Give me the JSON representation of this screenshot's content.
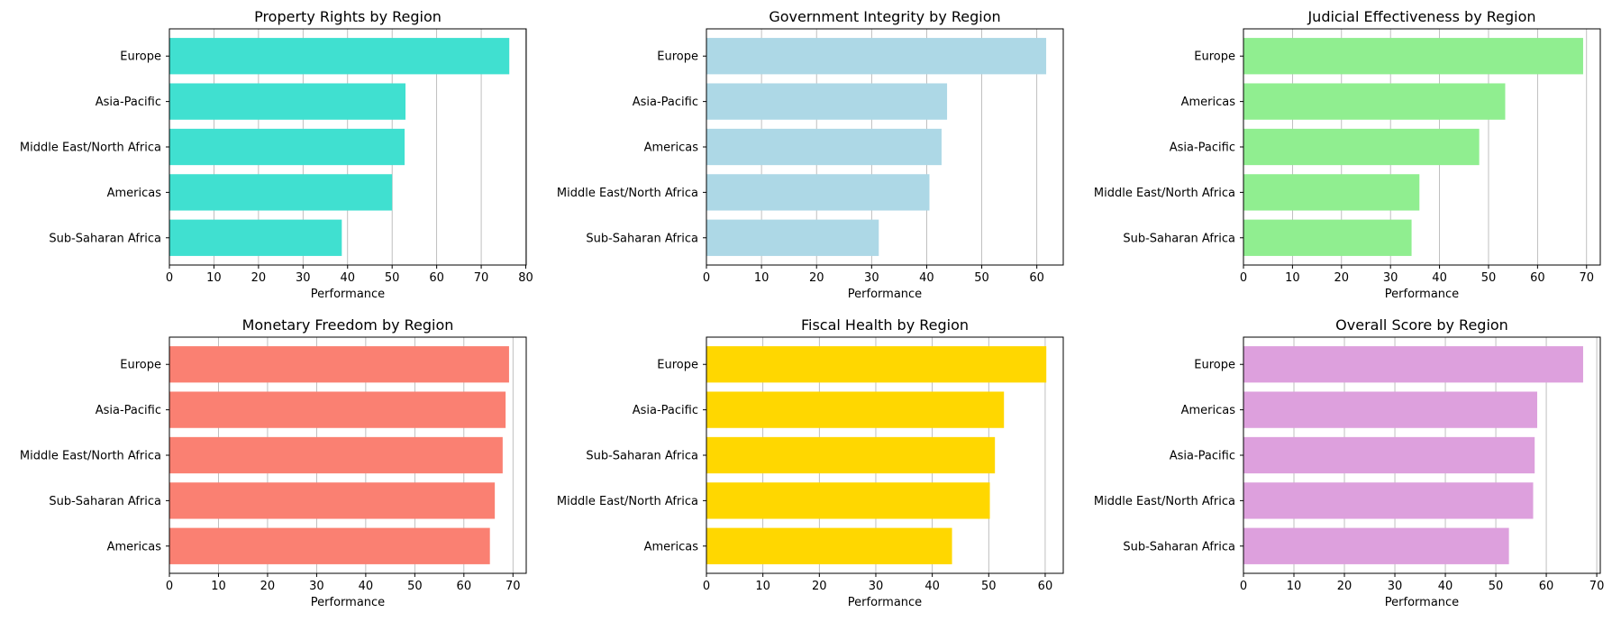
{
  "chart_data": [
    {
      "type": "bar",
      "orientation": "horizontal",
      "title": "Property Rights by Region",
      "xlabel": "Performance",
      "color": "#40e0d0",
      "categories": [
        "Europe",
        "Asia-Pacific",
        "Middle East/North Africa",
        "Americas",
        "Sub-Saharan Africa"
      ],
      "values": [
        76.3,
        53.0,
        52.8,
        50.0,
        38.7
      ],
      "xlim": [
        0,
        80.1
      ],
      "xticks": [
        0,
        10,
        20,
        30,
        40,
        50,
        60,
        70,
        80
      ],
      "grid": "x"
    },
    {
      "type": "bar",
      "orientation": "horizontal",
      "title": "Government Integrity by Region",
      "xlabel": "Performance",
      "color": "#add8e6",
      "categories": [
        "Europe",
        "Asia-Pacific",
        "Americas",
        "Middle East/North Africa",
        "Sub-Saharan Africa"
      ],
      "values": [
        61.7,
        43.7,
        42.7,
        40.5,
        31.3
      ],
      "xlim": [
        0,
        64.8
      ],
      "xticks": [
        0,
        10,
        20,
        30,
        40,
        50,
        60
      ],
      "grid": "x"
    },
    {
      "type": "bar",
      "orientation": "horizontal",
      "title": "Judicial Effectiveness by Region",
      "xlabel": "Performance",
      "color": "#90ee90",
      "categories": [
        "Europe",
        "Americas",
        "Asia-Pacific",
        "Middle East/North Africa",
        "Sub-Saharan Africa"
      ],
      "values": [
        69.3,
        53.4,
        48.1,
        35.9,
        34.3
      ],
      "xlim": [
        0,
        72.8
      ],
      "xticks": [
        0,
        10,
        20,
        30,
        40,
        50,
        60,
        70
      ],
      "grid": "x"
    },
    {
      "type": "bar",
      "orientation": "horizontal",
      "title": "Monetary Freedom by Region",
      "xlabel": "Performance",
      "color": "#fa8072",
      "categories": [
        "Europe",
        "Asia-Pacific",
        "Middle East/North Africa",
        "Sub-Saharan Africa",
        "Americas"
      ],
      "values": [
        69.2,
        68.5,
        67.9,
        66.3,
        65.3
      ],
      "xlim": [
        0,
        72.7
      ],
      "xticks": [
        0,
        10,
        20,
        30,
        40,
        50,
        60,
        70
      ],
      "grid": "x"
    },
    {
      "type": "bar",
      "orientation": "horizontal",
      "title": "Fiscal Health by Region",
      "xlabel": "Performance",
      "color": "#ffd700",
      "categories": [
        "Europe",
        "Asia-Pacific",
        "Sub-Saharan Africa",
        "Middle East/North Africa",
        "Americas"
      ],
      "values": [
        60.2,
        52.7,
        51.1,
        50.2,
        43.5
      ],
      "xlim": [
        0,
        63.2
      ],
      "xticks": [
        0,
        10,
        20,
        30,
        40,
        50,
        60
      ],
      "grid": "x"
    },
    {
      "type": "bar",
      "orientation": "horizontal",
      "title": "Overall Score by Region",
      "xlabel": "Performance",
      "color": "#dda0dd",
      "categories": [
        "Europe",
        "Americas",
        "Asia-Pacific",
        "Middle East/North Africa",
        "Sub-Saharan Africa"
      ],
      "values": [
        67.3,
        58.2,
        57.7,
        57.4,
        52.6
      ],
      "xlim": [
        0,
        70.7
      ],
      "xticks": [
        0,
        10,
        20,
        30,
        40,
        50,
        60,
        70
      ],
      "grid": "x"
    }
  ]
}
